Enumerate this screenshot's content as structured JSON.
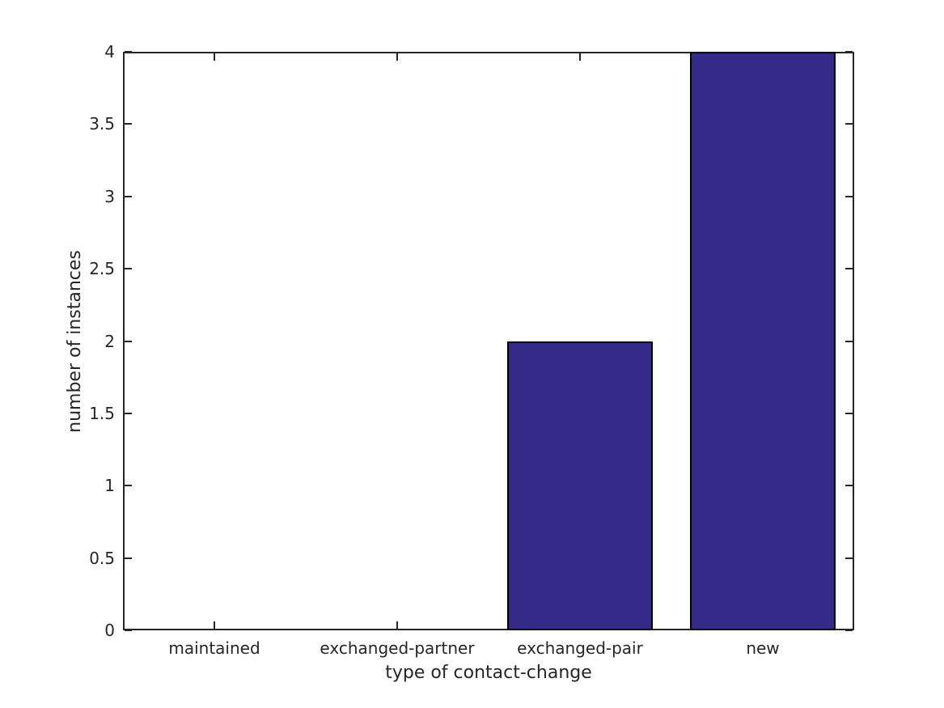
{
  "chart_data": {
    "type": "bar",
    "title": "",
    "categories": [
      "maintained",
      "exchanged-partner",
      "exchanged-pair",
      "new"
    ],
    "values": [
      0,
      0,
      2,
      4
    ],
    "xlabel": "type of contact-change",
    "ylabel": "number of instances",
    "ylim": [
      0,
      4
    ],
    "yticks": [
      0,
      0.5,
      1,
      1.5,
      2,
      2.5,
      3,
      3.5,
      4
    ],
    "ytick_labels": [
      "0",
      "0.5",
      "1",
      "1.5",
      "2",
      "2.5",
      "3",
      "3.5",
      "4"
    ],
    "bar_width_fraction": 0.8,
    "grid": false,
    "legend_position": "none",
    "colors": {
      "bar_fill": "#352a87",
      "bar_edge": "#000000",
      "axis": "#262626",
      "text": "#262626",
      "background": "#ffffff"
    }
  }
}
